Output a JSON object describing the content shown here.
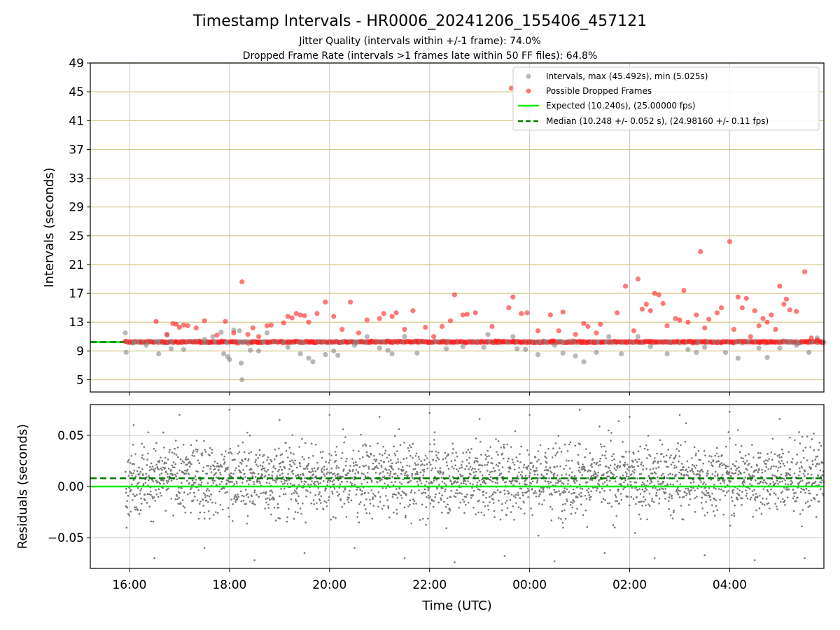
{
  "title": "Timestamp Intervals - HR0006_20241206_155406_457121",
  "subtitle_1": "Jitter Quality (intervals within +/-1 frame): 74.0%",
  "subtitle_2": "Dropped Frame Rate (intervals >1 frames late within 50 FF files): 64.8%",
  "chart_data": [
    {
      "type": "scatter",
      "panel": "intervals",
      "ylabel": "Intervals (seconds)",
      "ylim": [
        3.3,
        49
      ],
      "yticks": [
        5,
        9,
        13,
        17,
        21,
        25,
        29,
        33,
        37,
        41,
        45,
        49
      ],
      "xlim": [
        "15:13",
        "05:53"
      ],
      "xticks": [
        "16:00",
        "18:00",
        "20:00",
        "22:00",
        "00:00",
        "02:00",
        "04:00"
      ],
      "grid": true,
      "legend_placement": "top-right",
      "legend": [
        "Intervals, max (45.492s), min (5.025s)",
        "Possible Dropped Frames",
        "Expected (10.240s), (25.00000 fps)",
        "Median (10.248 +/- 0.052 s), (24.98160 +/- 0.11 fps)"
      ],
      "lines": [
        {
          "name": "Expected",
          "y": 10.24,
          "color": "#00ee00",
          "style": "solid"
        },
        {
          "name": "Median",
          "y": 10.248,
          "color": "#007a00",
          "style": "dashed"
        }
      ],
      "series": [
        {
          "name": "Intervals",
          "color": "#888888",
          "points": [
            [
              "15:55",
              11.5
            ],
            [
              "15:56",
              8.8
            ],
            [
              "16:05",
              10.1
            ],
            [
              "16:20",
              9.8
            ],
            [
              "16:35",
              8.6
            ],
            [
              "16:45",
              11.2
            ],
            [
              "16:50",
              9.3
            ],
            [
              "17:05",
              9.2
            ],
            [
              "17:30",
              10.6
            ],
            [
              "17:40",
              11.0
            ],
            [
              "17:50",
              11.6
            ],
            [
              "17:53",
              8.6
            ],
            [
              "17:58",
              8.2
            ],
            [
              "18:00",
              7.8
            ],
            [
              "18:05",
              11.9
            ],
            [
              "18:12",
              11.8
            ],
            [
              "18:14",
              7.3
            ],
            [
              "18:15",
              5.0
            ],
            [
              "18:25",
              9.1
            ],
            [
              "18:35",
              9.0
            ],
            [
              "18:45",
              11.5
            ],
            [
              "19:10",
              9.5
            ],
            [
              "19:25",
              8.6
            ],
            [
              "19:35",
              8.0
            ],
            [
              "19:40",
              7.5
            ],
            [
              "19:55",
              8.5
            ],
            [
              "20:05",
              9.0
            ],
            [
              "20:10",
              8.4
            ],
            [
              "20:30",
              9.8
            ],
            [
              "20:45",
              11.0
            ],
            [
              "21:00",
              9.4
            ],
            [
              "21:10",
              9.1
            ],
            [
              "21:15",
              8.6
            ],
            [
              "21:30",
              11.0
            ],
            [
              "21:45",
              8.7
            ],
            [
              "22:20",
              9.3
            ],
            [
              "22:40",
              9.6
            ],
            [
              "23:05",
              9.5
            ],
            [
              "23:10",
              11.3
            ],
            [
              "23:40",
              11.0
            ],
            [
              "23:45",
              9.3
            ],
            [
              "23:55",
              9.2
            ],
            [
              "00:10",
              8.5
            ],
            [
              "00:30",
              9.8
            ],
            [
              "00:40",
              8.7
            ],
            [
              "00:55",
              8.3
            ],
            [
              "01:05",
              7.5
            ],
            [
              "01:20",
              8.8
            ],
            [
              "01:35",
              11.0
            ],
            [
              "01:50",
              8.6
            ],
            [
              "02:10",
              11.0
            ],
            [
              "02:25",
              9.6
            ],
            [
              "02:45",
              8.6
            ],
            [
              "03:10",
              9.2
            ],
            [
              "03:20",
              8.8
            ],
            [
              "03:30",
              9.5
            ],
            [
              "03:55",
              8.8
            ],
            [
              "04:10",
              8.0
            ],
            [
              "04:35",
              9.4
            ],
            [
              "04:45",
              8.1
            ],
            [
              "05:00",
              9.4
            ],
            [
              "05:20",
              9.8
            ],
            [
              "05:35",
              8.8
            ],
            [
              "05:45",
              10.8
            ]
          ]
        },
        {
          "name": "Possible Dropped Frames",
          "color": "#ff2020",
          "points": [
            [
              "16:32",
              13.1
            ],
            [
              "16:45",
              11.3
            ],
            [
              "16:52",
              12.8
            ],
            [
              "16:56",
              12.7
            ],
            [
              "17:00",
              12.3
            ],
            [
              "17:05",
              12.6
            ],
            [
              "17:10",
              12.5
            ],
            [
              "17:20",
              12.2
            ],
            [
              "17:30",
              13.2
            ],
            [
              "17:45",
              11.2
            ],
            [
              "17:55",
              13.1
            ],
            [
              "18:05",
              11.5
            ],
            [
              "18:15",
              18.6
            ],
            [
              "18:22",
              11.3
            ],
            [
              "18:28",
              12.2
            ],
            [
              "18:35",
              11.0
            ],
            [
              "18:45",
              12.5
            ],
            [
              "18:50",
              12.6
            ],
            [
              "19:05",
              12.9
            ],
            [
              "19:10",
              13.8
            ],
            [
              "19:15",
              13.6
            ],
            [
              "19:20",
              14.2
            ],
            [
              "19:25",
              14.0
            ],
            [
              "19:30",
              13.9
            ],
            [
              "19:35",
              13.0
            ],
            [
              "19:45",
              14.2
            ],
            [
              "19:55",
              15.8
            ],
            [
              "20:05",
              13.8
            ],
            [
              "20:15",
              12.0
            ],
            [
              "20:25",
              15.8
            ],
            [
              "20:35",
              11.5
            ],
            [
              "20:45",
              13.3
            ],
            [
              "21:00",
              13.5
            ],
            [
              "21:05",
              14.2
            ],
            [
              "21:15",
              13.8
            ],
            [
              "21:20",
              14.3
            ],
            [
              "21:30",
              12.0
            ],
            [
              "21:40",
              14.6
            ],
            [
              "21:55",
              12.3
            ],
            [
              "22:05",
              11.0
            ],
            [
              "22:15",
              12.4
            ],
            [
              "22:25",
              13.2
            ],
            [
              "22:30",
              16.8
            ],
            [
              "22:40",
              14.0
            ],
            [
              "22:45",
              14.1
            ],
            [
              "22:55",
              14.3
            ],
            [
              "23:15",
              12.4
            ],
            [
              "23:35",
              15.0
            ],
            [
              "23:38",
              45.5
            ],
            [
              "23:40",
              16.5
            ],
            [
              "23:50",
              14.2
            ],
            [
              "23:57",
              14.3
            ],
            [
              "00:10",
              11.8
            ],
            [
              "00:25",
              14.0
            ],
            [
              "00:35",
              11.8
            ],
            [
              "00:40",
              14.4
            ],
            [
              "00:55",
              11.3
            ],
            [
              "01:05",
              12.8
            ],
            [
              "01:10",
              12.4
            ],
            [
              "01:20",
              11.5
            ],
            [
              "01:25",
              12.7
            ],
            [
              "01:45",
              14.3
            ],
            [
              "01:55",
              18.0
            ],
            [
              "02:05",
              11.8
            ],
            [
              "02:10",
              19.0
            ],
            [
              "02:15",
              14.8
            ],
            [
              "02:20",
              15.5
            ],
            [
              "02:25",
              14.6
            ],
            [
              "02:30",
              17.0
            ],
            [
              "02:35",
              16.8
            ],
            [
              "02:40",
              15.6
            ],
            [
              "02:45",
              12.5
            ],
            [
              "02:55",
              13.5
            ],
            [
              "03:00",
              13.3
            ],
            [
              "03:05",
              17.4
            ],
            [
              "03:10",
              13.0
            ],
            [
              "03:20",
              14.0
            ],
            [
              "03:25",
              22.8
            ],
            [
              "03:30",
              12.2
            ],
            [
              "03:35",
              13.4
            ],
            [
              "03:45",
              14.3
            ],
            [
              "03:50",
              15.0
            ],
            [
              "04:00",
              24.2
            ],
            [
              "04:05",
              12.0
            ],
            [
              "04:10",
              16.5
            ],
            [
              "04:15",
              15.0
            ],
            [
              "04:20",
              16.3
            ],
            [
              "04:25",
              11.0
            ],
            [
              "04:30",
              14.6
            ],
            [
              "04:35",
              12.5
            ],
            [
              "04:40",
              13.5
            ],
            [
              "04:45",
              13.0
            ],
            [
              "04:50",
              14.0
            ],
            [
              "04:55",
              12.0
            ],
            [
              "05:00",
              18.0
            ],
            [
              "05:05",
              15.5
            ],
            [
              "05:08",
              16.2
            ],
            [
              "05:12",
              14.7
            ],
            [
              "05:20",
              14.5
            ],
            [
              "05:30",
              20.0
            ],
            [
              "05:38",
              10.8
            ],
            [
              "05:45",
              10.5
            ]
          ]
        }
      ]
    },
    {
      "type": "scatter",
      "panel": "residuals",
      "xlabel": "Time (UTC)",
      "ylabel": "Residuals (seconds)",
      "ylim": [
        -0.08,
        0.08
      ],
      "yticks": [
        -0.05,
        0.0,
        0.05
      ],
      "ytick_labels": [
        "−0.05",
        "0.00",
        "0.05"
      ],
      "xlim": [
        "15:13",
        "05:53"
      ],
      "xticks": [
        "16:00",
        "18:00",
        "20:00",
        "22:00",
        "00:00",
        "02:00",
        "04:00"
      ],
      "grid": true,
      "lines": [
        {
          "name": "Expected",
          "y": 0.0,
          "color": "#00ee00",
          "style": "solid"
        },
        {
          "name": "Median",
          "y": 0.008,
          "color": "#007a00",
          "style": "dashed"
        }
      ],
      "series": [
        {
          "name": "Residuals",
          "color": "#777777",
          "x_range": [
            "15:55",
            "05:53"
          ],
          "center": 0.008,
          "spread": 0.025,
          "points": [
            [
              "16:05",
              0.06
            ],
            [
              "16:30",
              -0.07
            ],
            [
              "17:00",
              0.07
            ],
            [
              "17:30",
              -0.06
            ],
            [
              "18:00",
              0.075
            ],
            [
              "18:30",
              -0.072
            ],
            [
              "19:00",
              0.065
            ],
            [
              "19:30",
              -0.065
            ],
            [
              "20:00",
              0.07
            ],
            [
              "20:30",
              -0.06
            ],
            [
              "21:00",
              0.068
            ],
            [
              "21:30",
              -0.07
            ],
            [
              "22:00",
              0.072
            ],
            [
              "22:30",
              -0.074
            ],
            [
              "23:00",
              0.066
            ],
            [
              "23:30",
              -0.068
            ],
            [
              "00:00",
              0.07
            ],
            [
              "00:30",
              -0.073
            ],
            [
              "01:00",
              0.075
            ],
            [
              "01:30",
              -0.065
            ],
            [
              "02:00",
              0.068
            ],
            [
              "02:30",
              -0.07
            ],
            [
              "03:00",
              0.07
            ],
            [
              "03:30",
              -0.067
            ],
            [
              "04:00",
              0.073
            ],
            [
              "04:30",
              -0.072
            ],
            [
              "05:00",
              0.066
            ],
            [
              "05:30",
              -0.07
            ]
          ]
        }
      ]
    }
  ]
}
